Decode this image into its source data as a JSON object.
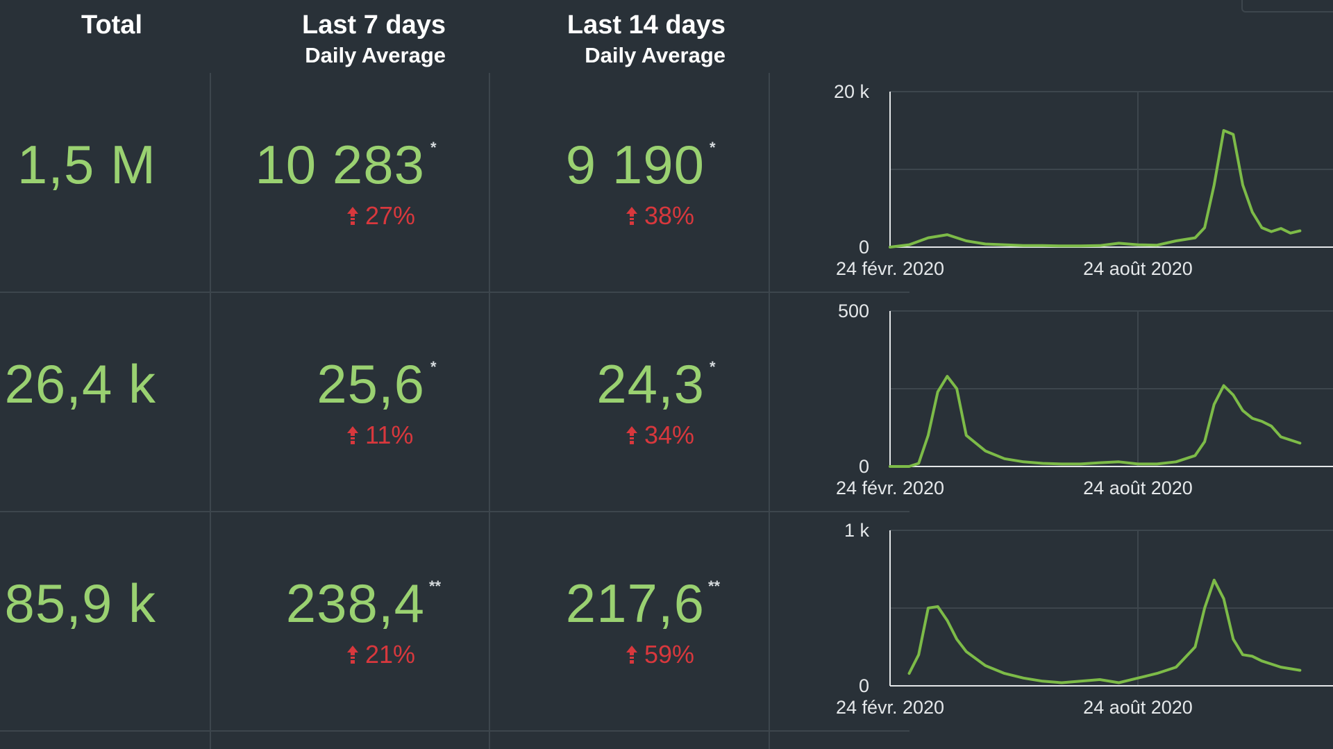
{
  "headers": {
    "total": "Total",
    "last7_line1": "Last 7 days",
    "last7_line2": "Daily Average",
    "last14_line1": "Last 14 days",
    "last14_line2": "Daily Average"
  },
  "rows": [
    {
      "total": "1,5 M",
      "avg7": "10 283",
      "avg7_mark": "*",
      "avg7_change": "27%",
      "avg14": "9 190",
      "avg14_mark": "*",
      "avg14_change": "38%"
    },
    {
      "total": "26,4 k",
      "avg7": "25,6",
      "avg7_mark": "*",
      "avg7_change": "11%",
      "avg14": "24,3",
      "avg14_mark": "*",
      "avg14_change": "34%"
    },
    {
      "total": "85,9 k",
      "avg7": "238,4",
      "avg7_mark": "**",
      "avg7_change": "21%",
      "avg14": "217,6",
      "avg14_mark": "**",
      "avg14_change": "59%"
    }
  ],
  "change_direction_icon": "arrow-up-icon",
  "colors": {
    "background": "#293138",
    "value_green": "#9ad171",
    "change_red": "#d8383d",
    "line_green": "#7dbb48",
    "grid": "#3d464d"
  },
  "chart_data": [
    {
      "type": "line",
      "x_tick_labels": [
        "24 févr. 2020",
        "24 août 2020"
      ],
      "y_tick_labels": [
        "20 k",
        "0"
      ],
      "ylim": [
        0,
        20000
      ],
      "grid": true,
      "x": [
        "2020-02-24",
        "2020-03-09",
        "2020-03-23",
        "2020-04-06",
        "2020-04-20",
        "2020-05-04",
        "2020-05-18",
        "2020-06-01",
        "2020-06-15",
        "2020-06-29",
        "2020-07-13",
        "2020-07-27",
        "2020-08-10",
        "2020-08-24",
        "2020-09-07",
        "2020-09-21",
        "2020-10-05",
        "2020-10-12",
        "2020-10-19",
        "2020-10-26",
        "2020-11-02",
        "2020-11-09",
        "2020-11-16",
        "2020-11-23",
        "2020-11-30",
        "2020-12-07",
        "2020-12-14",
        "2020-12-21"
      ],
      "values": [
        0,
        300,
        1200,
        1600,
        800,
        400,
        300,
        200,
        200,
        150,
        150,
        200,
        500,
        300,
        250,
        800,
        1200,
        2500,
        8000,
        15000,
        14500,
        8000,
        4500,
        2500,
        2000,
        2400,
        1800,
        2100
      ]
    },
    {
      "type": "line",
      "x_tick_labels": [
        "24 févr. 2020",
        "24 août 2020"
      ],
      "y_tick_labels": [
        "500",
        "0"
      ],
      "ylim": [
        0,
        500
      ],
      "grid": true,
      "x": [
        "2020-02-24",
        "2020-03-09",
        "2020-03-16",
        "2020-03-23",
        "2020-03-30",
        "2020-04-06",
        "2020-04-13",
        "2020-04-20",
        "2020-05-04",
        "2020-05-18",
        "2020-06-01",
        "2020-06-15",
        "2020-06-29",
        "2020-07-13",
        "2020-07-27",
        "2020-08-10",
        "2020-08-24",
        "2020-09-07",
        "2020-09-21",
        "2020-10-05",
        "2020-10-12",
        "2020-10-19",
        "2020-10-26",
        "2020-11-02",
        "2020-11-09",
        "2020-11-16",
        "2020-11-23",
        "2020-11-30",
        "2020-12-07",
        "2020-12-14",
        "2020-12-21"
      ],
      "values": [
        0,
        0,
        10,
        100,
        240,
        290,
        250,
        100,
        50,
        25,
        15,
        10,
        8,
        8,
        12,
        15,
        8,
        8,
        15,
        35,
        80,
        200,
        260,
        230,
        180,
        155,
        145,
        130,
        95,
        85,
        75
      ]
    },
    {
      "type": "line",
      "x_tick_labels": [
        "24 févr. 2020",
        "24 août 2020"
      ],
      "y_tick_labels": [
        "1 k",
        "0"
      ],
      "ylim": [
        0,
        1000
      ],
      "grid": true,
      "x": [
        "2020-03-09",
        "2020-03-16",
        "2020-03-23",
        "2020-03-30",
        "2020-04-06",
        "2020-04-13",
        "2020-04-20",
        "2020-05-04",
        "2020-05-18",
        "2020-06-01",
        "2020-06-15",
        "2020-06-29",
        "2020-07-13",
        "2020-07-27",
        "2020-08-10",
        "2020-08-24",
        "2020-09-07",
        "2020-09-21",
        "2020-10-05",
        "2020-10-12",
        "2020-10-19",
        "2020-10-26",
        "2020-11-02",
        "2020-11-09",
        "2020-11-16",
        "2020-11-23",
        "2020-11-30",
        "2020-12-07",
        "2020-12-14",
        "2020-12-21"
      ],
      "values": [
        80,
        200,
        500,
        510,
        420,
        300,
        220,
        130,
        80,
        50,
        30,
        20,
        30,
        40,
        20,
        50,
        80,
        120,
        250,
        500,
        680,
        560,
        300,
        200,
        190,
        160,
        140,
        120,
        110,
        100
      ]
    }
  ]
}
